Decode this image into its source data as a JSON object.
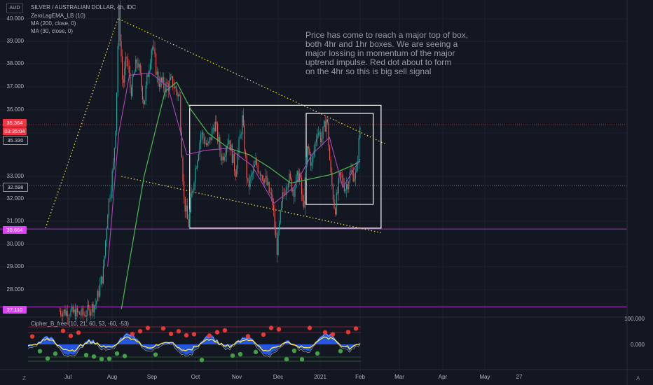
{
  "header": {
    "currency": "AUD",
    "title": "SILVER / AUSTRALIAN DOLLAR, 4h, IDC",
    "indicators": [
      "ZeroLagEMA_LB (10)",
      "MA (200, close, 0)",
      "MA (30, close, 0)"
    ]
  },
  "annotation": {
    "text": "Price has come to reach a major top of box,\nboth 4hr and 1hr boxes. We are seeing a\nmajor lossing in momentum of the major\n uptrend impulse. Red dot about to form\n on the 4hr so this is big sell signal"
  },
  "price_badges": [
    {
      "value": "35.364",
      "color": "#f23645"
    },
    {
      "value": "03:35:04",
      "color": "#f23645"
    },
    {
      "value": "35.330",
      "color": "#131722"
    },
    {
      "value": "32.598",
      "color": "#131722"
    },
    {
      "value": "30.664",
      "color": "#e040fb"
    },
    {
      "value": "27.110",
      "color": "#e040fb"
    }
  ],
  "oscillator": {
    "label": "Cipher_B_free (10, 21, 60, 53, -60, -53)",
    "axis": [
      "100.000",
      "0.000"
    ]
  },
  "corner_left": "Z",
  "corner_right": "A",
  "chart_data": {
    "type": "candlestick",
    "title": "SILVER / AUSTRALIAN DOLLAR, 4h, IDC",
    "y_ticks": [
      40,
      39,
      38,
      37,
      36,
      35,
      33,
      32,
      31,
      30,
      29,
      28
    ],
    "y_tick_labels": [
      "40.000",
      "39.000",
      "38.000",
      "37.000",
      "36.000",
      "35.000",
      "33.000",
      "32.000",
      "31.000",
      "30.000",
      "29.000",
      "28.000"
    ],
    "ylim": [
      26.8,
      40.5
    ],
    "x_tick_labels": [
      "Jul",
      "Aug",
      "Sep",
      "Oct",
      "Nov",
      "Dec",
      "2021",
      "Feb",
      "Mar",
      "Apr",
      "May",
      "27"
    ],
    "horizontal_lines": [
      {
        "value": 35.364,
        "color": "#f23645",
        "style": "dotted"
      },
      {
        "value": 32.598,
        "color": "#9598a1",
        "style": "dotted"
      },
      {
        "value": 30.664,
        "color": "#e040fb",
        "style": "solid"
      },
      {
        "value": 27.11,
        "color": "#e040fb",
        "style": "solid"
      }
    ],
    "price_path": [
      {
        "t": "Jun 25",
        "v": 26.9
      },
      {
        "t": "Jul 12",
        "v": 26.7
      },
      {
        "t": "Jul 20",
        "v": 27.3
      },
      {
        "t": "Jul 25",
        "v": 28.8
      },
      {
        "t": "Jul 28",
        "v": 31.5
      },
      {
        "t": "Aug 2",
        "v": 33.5
      },
      {
        "t": "Aug 4",
        "v": 35.8
      },
      {
        "t": "Aug 6",
        "v": 40.4
      },
      {
        "t": "Aug 9",
        "v": 37.0
      },
      {
        "t": "Aug 12",
        "v": 38.3
      },
      {
        "t": "Aug 15",
        "v": 36.8
      },
      {
        "t": "Aug 20",
        "v": 38.2
      },
      {
        "t": "Aug 25",
        "v": 36.3
      },
      {
        "t": "Sep 1",
        "v": 38.9
      },
      {
        "t": "Sep 5",
        "v": 37.3
      },
      {
        "t": "Sep 10",
        "v": 37.0
      },
      {
        "t": "Sep 15",
        "v": 37.2
      },
      {
        "t": "Sep 20",
        "v": 36.5
      },
      {
        "t": "Sep 23",
        "v": 32.0
      },
      {
        "t": "Sep 26",
        "v": 30.8
      },
      {
        "t": "Sep 30",
        "v": 33.0
      },
      {
        "t": "Oct 5",
        "v": 35.0
      },
      {
        "t": "Oct 10",
        "v": 34.3
      },
      {
        "t": "Oct 15",
        "v": 35.5
      },
      {
        "t": "Oct 20",
        "v": 33.8
      },
      {
        "t": "Oct 25",
        "v": 34.8
      },
      {
        "t": "Oct 30",
        "v": 33.2
      },
      {
        "t": "Nov 5",
        "v": 35.6
      },
      {
        "t": "Nov 9",
        "v": 32.5
      },
      {
        "t": "Nov 15",
        "v": 33.6
      },
      {
        "t": "Nov 22",
        "v": 32.8
      },
      {
        "t": "Nov 27",
        "v": 31.8
      },
      {
        "t": "Nov 30",
        "v": 29.7
      },
      {
        "t": "Dec 4",
        "v": 32.0
      },
      {
        "t": "Dec 8",
        "v": 33.0
      },
      {
        "t": "Dec 12",
        "v": 32.4
      },
      {
        "t": "Dec 16",
        "v": 33.2
      },
      {
        "t": "Dec 19",
        "v": 31.5
      },
      {
        "t": "Dec 22",
        "v": 34.4
      },
      {
        "t": "Dec 25",
        "v": 33.5
      },
      {
        "t": "Dec 29",
        "v": 35.2
      },
      {
        "t": "Jan 2",
        "v": 34.7
      },
      {
        "t": "Jan 6",
        "v": 35.7
      },
      {
        "t": "Jan 9",
        "v": 33.0
      },
      {
        "t": "Jan 12",
        "v": 31.5
      },
      {
        "t": "Jan 16",
        "v": 33.0
      },
      {
        "t": "Jan 20",
        "v": 32.5
      },
      {
        "t": "Jan 24",
        "v": 33.2
      },
      {
        "t": "Jan 28",
        "v": 33.0
      },
      {
        "t": "Jan 30",
        "v": 34.5
      },
      {
        "t": "Feb 1",
        "v": 35.36
      }
    ],
    "ma200_path": [
      {
        "t": "Aug 8",
        "v": 27.0
      },
      {
        "t": "Aug 25",
        "v": 33.0
      },
      {
        "t": "Sep 10",
        "v": 36.8
      },
      {
        "t": "Sep 18",
        "v": 37.2
      },
      {
        "t": "Sep 28",
        "v": 36.0
      },
      {
        "t": "Oct 10",
        "v": 35.0
      },
      {
        "t": "Oct 25",
        "v": 34.3
      },
      {
        "t": "Nov 10",
        "v": 34.0
      },
      {
        "t": "Nov 25",
        "v": 33.4
      },
      {
        "t": "Dec 10",
        "v": 32.7
      },
      {
        "t": "Dec 25",
        "v": 32.9
      },
      {
        "t": "Jan 10",
        "v": 33.1
      },
      {
        "t": "Jan 25",
        "v": 33.5
      },
      {
        "t": "Feb 1",
        "v": 33.7
      }
    ],
    "ma30_path": [
      {
        "t": "Jul 28",
        "v": 29.0
      },
      {
        "t": "Aug 6",
        "v": 35.0
      },
      {
        "t": "Aug 14",
        "v": 37.5
      },
      {
        "t": "Aug 30",
        "v": 37.6
      },
      {
        "t": "Sep 12",
        "v": 37.0
      },
      {
        "t": "Sep 25",
        "v": 34.0
      },
      {
        "t": "Oct 8",
        "v": 34.2
      },
      {
        "t": "Oct 25",
        "v": 34.3
      },
      {
        "t": "Nov 12",
        "v": 33.5
      },
      {
        "t": "Nov 28",
        "v": 31.8
      },
      {
        "t": "Dec 12",
        "v": 32.5
      },
      {
        "t": "Dec 25",
        "v": 34.0
      },
      {
        "t": "Jan 8",
        "v": 34.8
      },
      {
        "t": "Jan 18",
        "v": 32.5
      },
      {
        "t": "Feb 1",
        "v": 33.8
      }
    ],
    "trendlines": [
      {
        "from": {
          "t": "Jun 15",
          "v": 30.7
        },
        "to": {
          "t": "Aug 6",
          "v": 40.1
        }
      },
      {
        "from": {
          "t": "Aug 6",
          "v": 40.0
        },
        "to": {
          "t": "Feb 20",
          "v": 34.5
        }
      },
      {
        "from": {
          "t": "Aug 8",
          "v": 33.0
        },
        "to": {
          "t": "Feb 17",
          "v": 30.5
        }
      }
    ],
    "boxes": [
      {
        "t_start": "Sep 27",
        "t_end": "Feb 17",
        "v_top": 36.2,
        "v_bottom": 30.7
      },
      {
        "t_start": "Dec 21",
        "t_end": "Feb 11",
        "v_top": 35.85,
        "v_bottom": 31.75
      }
    ],
    "grid": true
  }
}
